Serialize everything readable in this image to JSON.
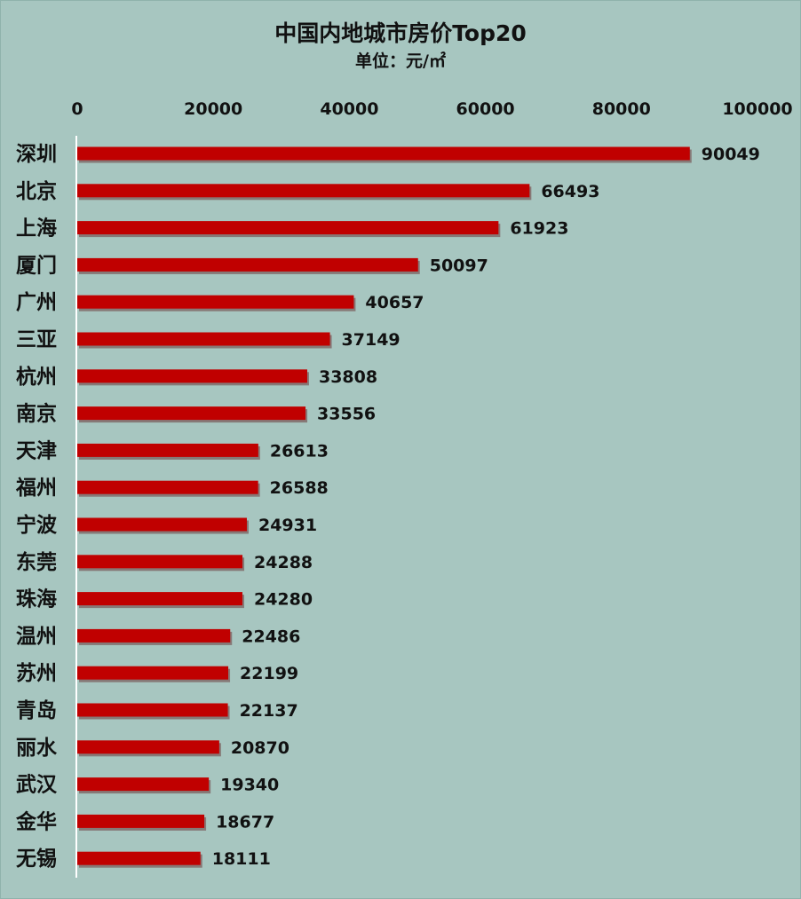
{
  "chart_data": {
    "type": "bar",
    "orientation": "horizontal",
    "title": "中国内地城市房价Top20",
    "subtitle": "单位：元/㎡",
    "xlabel": "",
    "ylabel": "",
    "xlim": [
      0,
      100000
    ],
    "ticks": [
      "0",
      "20000",
      "40000",
      "60000",
      "80000",
      "100000"
    ],
    "tick_values": [
      0,
      20000,
      40000,
      60000,
      80000,
      100000
    ],
    "categories": [
      "深圳",
      "北京",
      "上海",
      "厦门",
      "广州",
      "三亚",
      "杭州",
      "南京",
      "天津",
      "福州",
      "宁波",
      "东莞",
      "珠海",
      "温州",
      "苏州",
      "青岛",
      "丽水",
      "武汉",
      "金华",
      "无锡"
    ],
    "values": [
      90049,
      66493,
      61923,
      50097,
      40657,
      37149,
      33808,
      33556,
      26613,
      26588,
      24931,
      24288,
      24280,
      22486,
      22199,
      22137,
      20870,
      19340,
      18677,
      18111
    ],
    "value_labels": [
      "90049",
      "66493",
      "61923",
      "50097",
      "40657",
      "37149",
      "33808",
      "33556",
      "26613",
      "26588",
      "24931",
      "24288",
      "24280",
      "22486",
      "22199",
      "22137",
      "20870",
      "19340",
      "18677",
      "18111"
    ],
    "grid": false,
    "legend": "none",
    "colors": {
      "bar": "#c00000",
      "bar_shadow": "#6b3b3b",
      "background": "#a7c6c0",
      "axis": "#ffffff",
      "text": "#111111"
    }
  }
}
